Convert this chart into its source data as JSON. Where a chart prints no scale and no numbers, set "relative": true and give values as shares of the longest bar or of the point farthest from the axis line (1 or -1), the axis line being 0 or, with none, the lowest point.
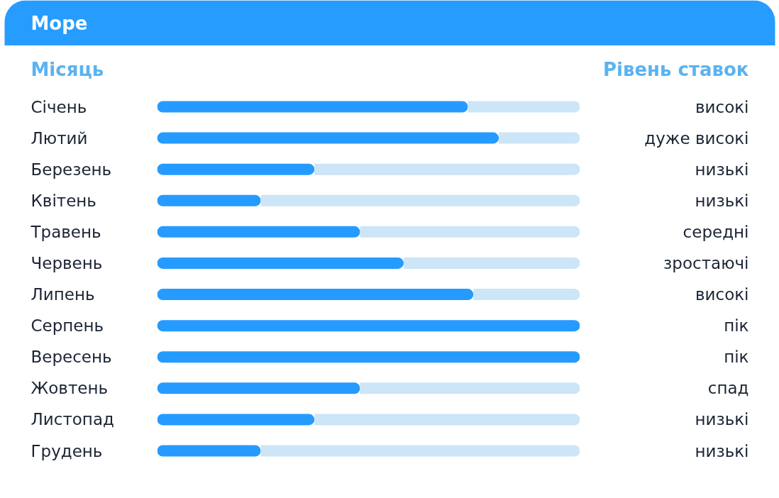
{
  "chart_data": {
    "type": "bar",
    "orientation": "horizontal",
    "relative": true,
    "stacked": true,
    "title": "Море",
    "ylabel": "Місяць",
    "categories": [
      "Січень",
      "Лютий",
      "Березень",
      "Квітень",
      "Травень",
      "Червень",
      "Липень",
      "Серпень",
      "Вересень",
      "Жовтень",
      "Листопад",
      "Грудень"
    ],
    "series": [
      {
        "color": "#259bff",
        "values": [
          0.735,
          0.808,
          0.372,
          0.245,
          0.48,
          0.583,
          0.748,
          1,
          1,
          0.48,
          0.372,
          0.245
        ]
      },
      {
        "color": "#cce5f7",
        "values": [
          0.265,
          0.192,
          0.628,
          0.755,
          0.52,
          0.417,
          0.252,
          0,
          0,
          0.52,
          0.628,
          0.755
        ]
      }
    ],
    "annotations": [
      "Рівень ставок",
      "високі",
      "дуже високі",
      "низькі",
      "низькі",
      "середні",
      "зростаючі",
      "високі",
      "пік",
      "пік",
      "спад",
      "низькі",
      "низькі"
    ]
  }
}
